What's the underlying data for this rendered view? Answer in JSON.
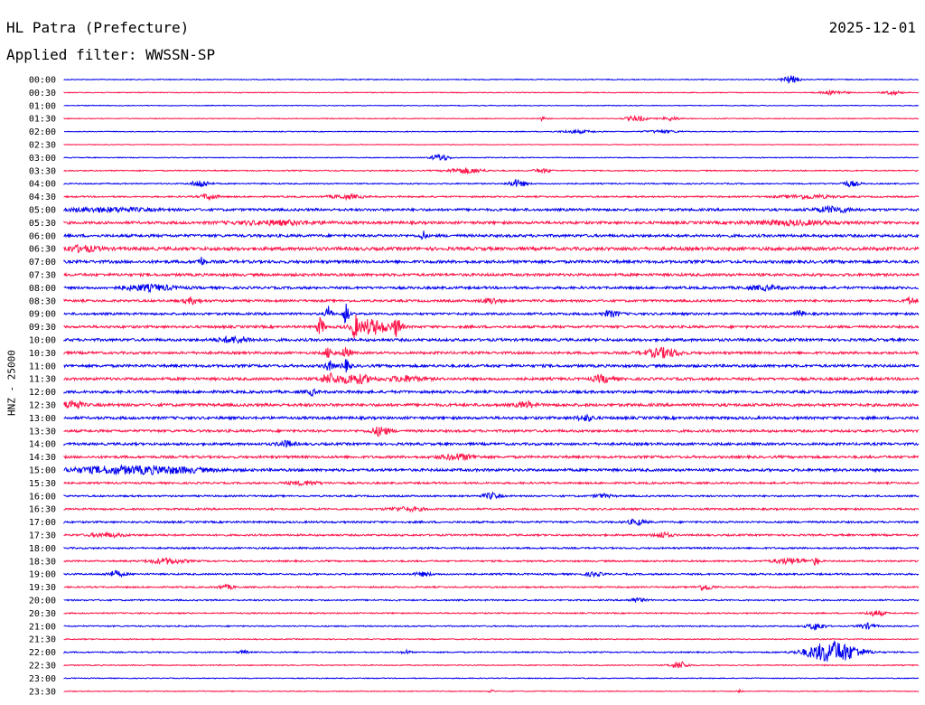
{
  "header": {
    "station": "HL Patra (Prefecture)",
    "date": "2025-12-01",
    "filter": "Applied filter: WWSSN-SP"
  },
  "chart_data": {
    "type": "line",
    "title": "HL Patra (Prefecture)",
    "subtitle": "Applied filter: WWSSN-SP",
    "date": "2025-12-01",
    "ylabel": "HNZ - 25000",
    "xlabel": "",
    "grid": false,
    "colors": {
      "even": "#0000ee",
      "odd": "#ff1449"
    },
    "rows": [
      {
        "label": "00:00",
        "activity": 0.15,
        "events": [
          {
            "pos": 0.85,
            "amp": 4,
            "width": 0.01
          }
        ]
      },
      {
        "label": "00:30",
        "activity": 0.1,
        "events": [
          {
            "pos": 0.9,
            "amp": 2,
            "width": 0.015
          },
          {
            "pos": 0.97,
            "amp": 2,
            "width": 0.01
          }
        ]
      },
      {
        "label": "01:00",
        "activity": 0.05,
        "events": []
      },
      {
        "label": "01:30",
        "activity": 0.1,
        "events": [
          {
            "pos": 0.56,
            "amp": 2,
            "width": 0.005
          },
          {
            "pos": 0.67,
            "amp": 3,
            "width": 0.012
          },
          {
            "pos": 0.71,
            "amp": 2,
            "width": 0.01
          }
        ]
      },
      {
        "label": "02:00",
        "activity": 0.08,
        "events": [
          {
            "pos": 0.6,
            "amp": 1.5,
            "width": 0.02
          },
          {
            "pos": 0.7,
            "amp": 1.5,
            "width": 0.02
          }
        ]
      },
      {
        "label": "02:30",
        "activity": 0.05,
        "events": []
      },
      {
        "label": "03:00",
        "activity": 0.1,
        "events": [
          {
            "pos": 0.44,
            "amp": 4,
            "width": 0.01
          }
        ]
      },
      {
        "label": "03:30",
        "activity": 0.25,
        "events": [
          {
            "pos": 0.47,
            "amp": 3,
            "width": 0.02
          },
          {
            "pos": 0.56,
            "amp": 2,
            "width": 0.01
          }
        ]
      },
      {
        "label": "04:00",
        "activity": 0.3,
        "events": [
          {
            "pos": 0.16,
            "amp": 4,
            "width": 0.01
          },
          {
            "pos": 0.53,
            "amp": 4,
            "width": 0.01
          },
          {
            "pos": 0.92,
            "amp": 3,
            "width": 0.01
          }
        ]
      },
      {
        "label": "04:30",
        "activity": 0.4,
        "events": [
          {
            "pos": 0.17,
            "amp": 3,
            "width": 0.01
          },
          {
            "pos": 0.33,
            "amp": 2,
            "width": 0.02
          },
          {
            "pos": 0.87,
            "amp": 2,
            "width": 0.03
          }
        ]
      },
      {
        "label": "05:00",
        "activity": 0.9,
        "events": [
          {
            "pos": 0.05,
            "amp": 2,
            "width": 0.05
          },
          {
            "pos": 0.9,
            "amp": 3,
            "width": 0.02
          }
        ]
      },
      {
        "label": "05:30",
        "activity": 1.0,
        "events": [
          {
            "pos": 0.25,
            "amp": 2,
            "width": 0.05
          },
          {
            "pos": 0.85,
            "amp": 2,
            "width": 0.05
          }
        ]
      },
      {
        "label": "06:00",
        "activity": 1.0,
        "events": [
          {
            "pos": 0.42,
            "amp": 5,
            "width": 0.003
          }
        ]
      },
      {
        "label": "06:30",
        "activity": 1.3,
        "events": [
          {
            "pos": 0.02,
            "amp": 3,
            "width": 0.02
          }
        ]
      },
      {
        "label": "07:00",
        "activity": 1.1,
        "events": [
          {
            "pos": 0.16,
            "amp": 5,
            "width": 0.004
          }
        ]
      },
      {
        "label": "07:30",
        "activity": 1.0,
        "events": []
      },
      {
        "label": "08:00",
        "activity": 0.9,
        "events": [
          {
            "pos": 0.1,
            "amp": 3,
            "width": 0.03
          },
          {
            "pos": 0.82,
            "amp": 2,
            "width": 0.02
          }
        ]
      },
      {
        "label": "08:30",
        "activity": 0.8,
        "events": [
          {
            "pos": 0.15,
            "amp": 3,
            "width": 0.01
          },
          {
            "pos": 0.5,
            "amp": 3,
            "width": 0.01
          },
          {
            "pos": 0.99,
            "amp": 4,
            "width": 0.005
          }
        ]
      },
      {
        "label": "09:00",
        "activity": 0.8,
        "events": [
          {
            "pos": 0.31,
            "amp": 12,
            "width": 0.003
          },
          {
            "pos": 0.33,
            "amp": 14,
            "width": 0.003
          },
          {
            "pos": 0.64,
            "amp": 3,
            "width": 0.01
          },
          {
            "pos": 0.86,
            "amp": 4,
            "width": 0.005
          }
        ]
      },
      {
        "label": "09:30",
        "activity": 0.9,
        "events": [
          {
            "pos": 0.3,
            "amp": 10,
            "width": 0.004
          },
          {
            "pos": 0.34,
            "amp": 12,
            "width": 0.003
          },
          {
            "pos": 0.36,
            "amp": 8,
            "width": 0.02
          },
          {
            "pos": 0.39,
            "amp": 10,
            "width": 0.005
          }
        ]
      },
      {
        "label": "10:00",
        "activity": 1.0,
        "events": [
          {
            "pos": 0.2,
            "amp": 3,
            "width": 0.02
          }
        ]
      },
      {
        "label": "10:30",
        "activity": 0.9,
        "events": [
          {
            "pos": 0.31,
            "amp": 6,
            "width": 0.005
          },
          {
            "pos": 0.33,
            "amp": 6,
            "width": 0.005
          },
          {
            "pos": 0.7,
            "amp": 5,
            "width": 0.02
          }
        ]
      },
      {
        "label": "11:00",
        "activity": 1.0,
        "events": [
          {
            "pos": 0.31,
            "amp": 5,
            "width": 0.005
          },
          {
            "pos": 0.33,
            "amp": 6,
            "width": 0.005
          }
        ]
      },
      {
        "label": "11:30",
        "activity": 1.0,
        "events": [
          {
            "pos": 0.31,
            "amp": 5,
            "width": 0.01
          },
          {
            "pos": 0.34,
            "amp": 5,
            "width": 0.02
          },
          {
            "pos": 0.4,
            "amp": 3,
            "width": 0.02
          },
          {
            "pos": 0.63,
            "amp": 4,
            "width": 0.01
          }
        ]
      },
      {
        "label": "12:00",
        "activity": 1.0,
        "events": [
          {
            "pos": 0.29,
            "amp": 3,
            "width": 0.005
          }
        ]
      },
      {
        "label": "12:30",
        "activity": 1.1,
        "events": [
          {
            "pos": 0.01,
            "amp": 5,
            "width": 0.01
          },
          {
            "pos": 0.54,
            "amp": 3,
            "width": 0.01
          }
        ]
      },
      {
        "label": "13:00",
        "activity": 1.0,
        "events": [
          {
            "pos": 0.61,
            "amp": 3,
            "width": 0.01
          }
        ]
      },
      {
        "label": "13:30",
        "activity": 0.9,
        "events": [
          {
            "pos": 0.37,
            "amp": 5,
            "width": 0.01
          }
        ]
      },
      {
        "label": "14:00",
        "activity": 0.9,
        "events": [
          {
            "pos": 0.26,
            "amp": 3,
            "width": 0.01
          }
        ]
      },
      {
        "label": "14:30",
        "activity": 0.9,
        "events": [
          {
            "pos": 0.46,
            "amp": 3,
            "width": 0.02
          }
        ]
      },
      {
        "label": "15:00",
        "activity": 1.0,
        "events": [
          {
            "pos": 0.05,
            "amp": 3,
            "width": 0.05
          },
          {
            "pos": 0.12,
            "amp": 3,
            "width": 0.05
          }
        ]
      },
      {
        "label": "15:30",
        "activity": 0.6,
        "events": [
          {
            "pos": 0.28,
            "amp": 2,
            "width": 0.02
          }
        ]
      },
      {
        "label": "16:00",
        "activity": 0.5,
        "events": [
          {
            "pos": 0.5,
            "amp": 3,
            "width": 0.01
          },
          {
            "pos": 0.63,
            "amp": 2,
            "width": 0.01
          }
        ]
      },
      {
        "label": "16:30",
        "activity": 0.6,
        "events": [
          {
            "pos": 0.4,
            "amp": 2,
            "width": 0.02
          }
        ]
      },
      {
        "label": "17:00",
        "activity": 0.6,
        "events": [
          {
            "pos": 0.67,
            "amp": 3,
            "width": 0.01
          }
        ]
      },
      {
        "label": "17:30",
        "activity": 0.6,
        "events": [
          {
            "pos": 0.05,
            "amp": 2,
            "width": 0.02
          },
          {
            "pos": 0.7,
            "amp": 3,
            "width": 0.01
          }
        ]
      },
      {
        "label": "18:00",
        "activity": 0.5,
        "events": []
      },
      {
        "label": "18:30",
        "activity": 0.5,
        "events": [
          {
            "pos": 0.12,
            "amp": 3,
            "width": 0.02
          },
          {
            "pos": 0.85,
            "amp": 3,
            "width": 0.02
          },
          {
            "pos": 0.88,
            "amp": 5,
            "width": 0.003
          }
        ]
      },
      {
        "label": "19:00",
        "activity": 0.5,
        "events": [
          {
            "pos": 0.06,
            "amp": 3,
            "width": 0.01
          },
          {
            "pos": 0.42,
            "amp": 2,
            "width": 0.01
          },
          {
            "pos": 0.62,
            "amp": 2,
            "width": 0.01
          }
        ]
      },
      {
        "label": "19:30",
        "activity": 0.4,
        "events": [
          {
            "pos": 0.19,
            "amp": 2,
            "width": 0.01
          },
          {
            "pos": 0.75,
            "amp": 3,
            "width": 0.01
          }
        ]
      },
      {
        "label": "20:00",
        "activity": 0.4,
        "events": [
          {
            "pos": 0.67,
            "amp": 2,
            "width": 0.01
          }
        ]
      },
      {
        "label": "20:30",
        "activity": 0.3,
        "events": [
          {
            "pos": 0.95,
            "amp": 3,
            "width": 0.01
          }
        ]
      },
      {
        "label": "21:00",
        "activity": 0.3,
        "events": [
          {
            "pos": 0.88,
            "amp": 4,
            "width": 0.01
          },
          {
            "pos": 0.94,
            "amp": 3,
            "width": 0.01
          }
        ]
      },
      {
        "label": "21:30",
        "activity": 0.2,
        "events": []
      },
      {
        "label": "22:00",
        "activity": 0.3,
        "events": [
          {
            "pos": 0.21,
            "amp": 2,
            "width": 0.005
          },
          {
            "pos": 0.4,
            "amp": 2,
            "width": 0.005
          },
          {
            "pos": 0.9,
            "amp": 12,
            "width": 0.03
          }
        ]
      },
      {
        "label": "22:30",
        "activity": 0.2,
        "events": [
          {
            "pos": 0.72,
            "amp": 4,
            "width": 0.01
          }
        ]
      },
      {
        "label": "23:00",
        "activity": 0.1,
        "events": []
      },
      {
        "label": "23:30",
        "activity": 0.1,
        "events": [
          {
            "pos": 0.5,
            "amp": 2,
            "width": 0.003
          },
          {
            "pos": 0.79,
            "amp": 2,
            "width": 0.003
          }
        ]
      }
    ]
  }
}
